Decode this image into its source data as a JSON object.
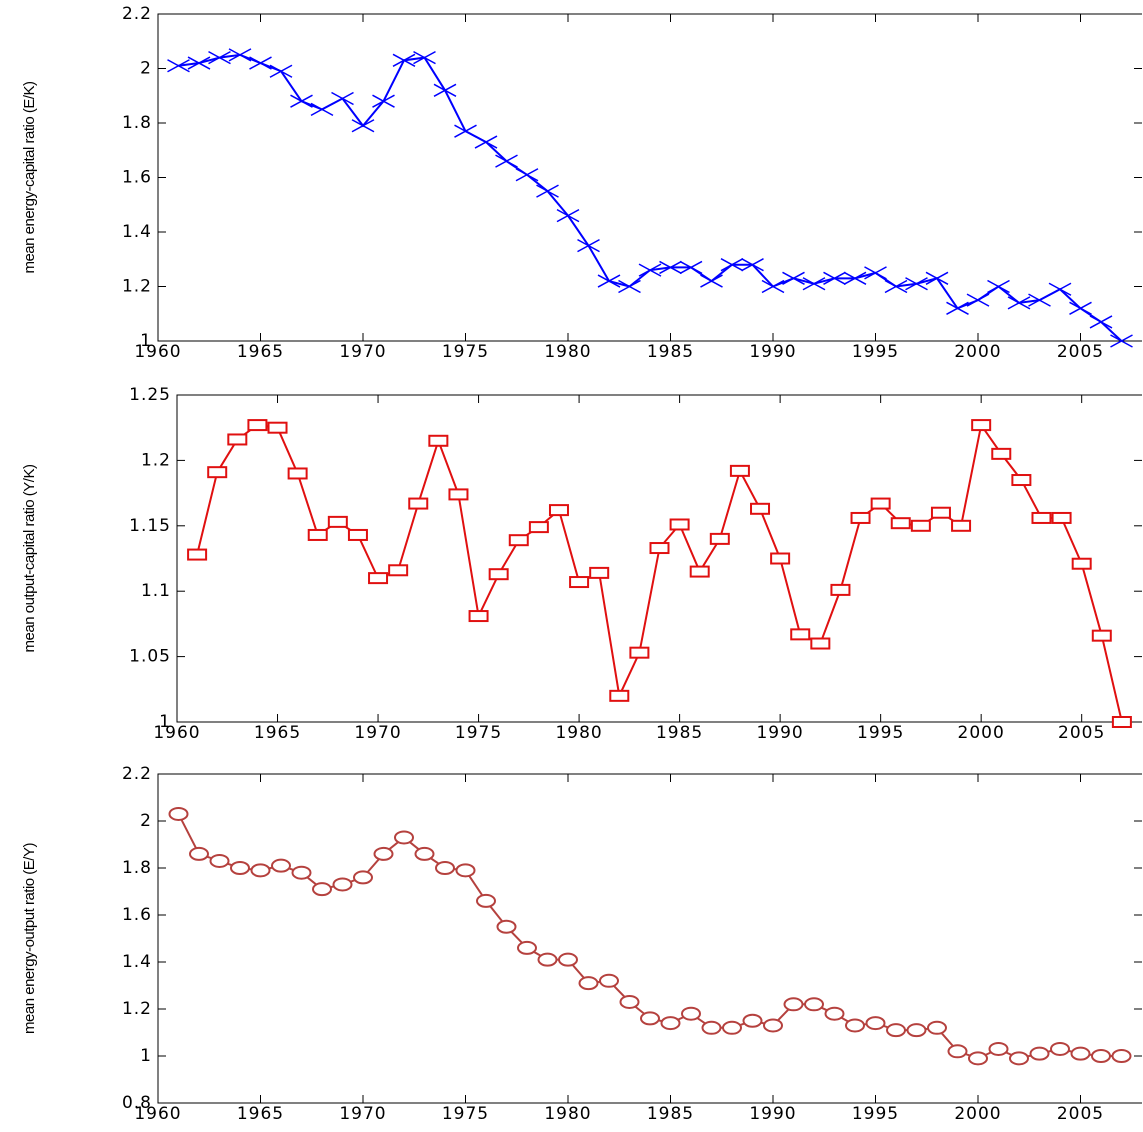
{
  "chart_data": [
    {
      "type": "line",
      "ylabel": "mean energy-capital ratio (E/K)",
      "x": [
        1961,
        1962,
        1963,
        1964,
        1965,
        1966,
        1967,
        1968,
        1969,
        1970,
        1971,
        1972,
        1973,
        1974,
        1975,
        1976,
        1977,
        1978,
        1979,
        1980,
        1981,
        1982,
        1983,
        1984,
        1985,
        1986,
        1987,
        1988,
        1989,
        1990,
        1991,
        1992,
        1993,
        1994,
        1995,
        1996,
        1997,
        1998,
        1999,
        2000,
        2001,
        2002,
        2003,
        2004,
        2005,
        2006,
        2007
      ],
      "series": [
        {
          "color": "#0000ff",
          "marker": "x",
          "values": [
            2.01,
            2.02,
            2.04,
            2.05,
            2.02,
            1.99,
            1.88,
            1.85,
            1.89,
            1.79,
            1.88,
            2.03,
            2.04,
            1.92,
            1.77,
            1.73,
            1.66,
            1.61,
            1.55,
            1.46,
            1.35,
            1.22,
            1.2,
            1.26,
            1.27,
            1.27,
            1.22,
            1.28,
            1.28,
            1.2,
            1.23,
            1.21,
            1.23,
            1.23,
            1.25,
            1.2,
            1.21,
            1.23,
            1.12,
            1.15,
            1.2,
            1.14,
            1.15,
            1.19,
            1.12,
            1.07,
            1.0
          ]
        }
      ],
      "xlim": [
        1960,
        2008
      ],
      "xticks": [
        1960,
        1965,
        1970,
        1975,
        1980,
        1985,
        1990,
        1995,
        2000,
        2005
      ],
      "ylim": [
        1,
        2.2
      ],
      "yticks": [
        1,
        1.2,
        1.4,
        1.6,
        1.8,
        2,
        2.2
      ]
    },
    {
      "type": "line",
      "ylabel": "mean output-capital ratio (Y/K)",
      "x": [
        1961,
        1962,
        1963,
        1964,
        1965,
        1966,
        1967,
        1968,
        1969,
        1970,
        1971,
        1972,
        1973,
        1974,
        1975,
        1976,
        1977,
        1978,
        1979,
        1980,
        1981,
        1982,
        1983,
        1984,
        1985,
        1986,
        1987,
        1988,
        1989,
        1990,
        1991,
        1992,
        1993,
        1994,
        1995,
        1996,
        1997,
        1998,
        1999,
        2000,
        2001,
        2002,
        2003,
        2004,
        2005,
        2006,
        2007
      ],
      "series": [
        {
          "color": "#e01010",
          "marker": "square",
          "values": [
            1.128,
            1.191,
            1.216,
            1.227,
            1.225,
            1.19,
            1.143,
            1.153,
            1.143,
            1.11,
            1.116,
            1.167,
            1.215,
            1.174,
            1.081,
            1.113,
            1.139,
            1.149,
            1.162,
            1.107,
            1.114,
            1.02,
            1.053,
            1.133,
            1.151,
            1.115,
            1.14,
            1.192,
            1.163,
            1.125,
            1.067,
            1.06,
            1.101,
            1.156,
            1.167,
            1.152,
            1.15,
            1.16,
            1.15,
            1.227,
            1.205,
            1.185,
            1.156,
            1.156,
            1.121,
            1.066,
            1.0
          ]
        }
      ],
      "xlim": [
        1960,
        2008
      ],
      "xticks": [
        1960,
        1965,
        1970,
        1975,
        1980,
        1985,
        1990,
        1995,
        2000,
        2005
      ],
      "ylim": [
        1,
        1.25
      ],
      "yticks": [
        1,
        1.05,
        1.1,
        1.15,
        1.2,
        1.25
      ]
    },
    {
      "type": "line",
      "ylabel": "mean energy-output ratio (E/Y)",
      "x": [
        1961,
        1962,
        1963,
        1964,
        1965,
        1966,
        1967,
        1968,
        1969,
        1970,
        1971,
        1972,
        1973,
        1974,
        1975,
        1976,
        1977,
        1978,
        1979,
        1980,
        1981,
        1982,
        1983,
        1984,
        1985,
        1986,
        1987,
        1988,
        1989,
        1990,
        1991,
        1992,
        1993,
        1994,
        1995,
        1996,
        1997,
        1998,
        1999,
        2000,
        2001,
        2002,
        2003,
        2004,
        2005,
        2006,
        2007
      ],
      "series": [
        {
          "color": "#b5413e",
          "marker": "circle",
          "values": [
            2.03,
            1.86,
            1.83,
            1.8,
            1.79,
            1.81,
            1.78,
            1.71,
            1.73,
            1.76,
            1.86,
            1.93,
            1.86,
            1.8,
            1.79,
            1.66,
            1.55,
            1.46,
            1.41,
            1.41,
            1.31,
            1.32,
            1.23,
            1.16,
            1.14,
            1.18,
            1.12,
            1.12,
            1.15,
            1.13,
            1.22,
            1.22,
            1.18,
            1.13,
            1.14,
            1.11,
            1.11,
            1.12,
            1.02,
            0.99,
            1.03,
            0.99,
            1.01,
            1.03,
            1.01,
            1.0,
            1.0
          ]
        }
      ],
      "xlim": [
        1960,
        2008
      ],
      "xticks": [
        1960,
        1965,
        1970,
        1975,
        1980,
        1985,
        1990,
        1995,
        2000,
        2005
      ],
      "ylim": [
        0.8,
        2.2
      ],
      "yticks": [
        0.8,
        1,
        1.2,
        1.4,
        1.6,
        1.8,
        2,
        2.2
      ]
    }
  ]
}
